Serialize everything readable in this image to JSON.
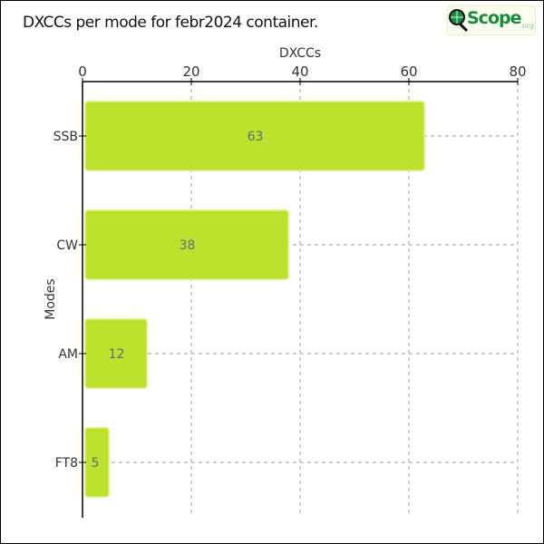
{
  "title": "DXCCs per mode for febr2024 container.",
  "logo": {
    "text": "Scope",
    "suffix": ".org"
  },
  "colors": {
    "bar": "#bde22e",
    "bar_border": "#d8f070",
    "label": "#55707a",
    "grid": "#999999"
  },
  "chart_data": {
    "type": "bar",
    "orientation": "horizontal",
    "title": "DXCCs per mode for febr2024 container.",
    "xlabel": "DXCCs",
    "ylabel": "Modes",
    "categories": [
      "SSB",
      "CW",
      "AM",
      "FT8"
    ],
    "values": [
      63,
      38,
      12,
      5
    ],
    "xlim": [
      0,
      80
    ],
    "xticks": [
      0,
      20,
      40,
      60,
      80
    ],
    "x_axis_position": "top",
    "grid": true
  }
}
